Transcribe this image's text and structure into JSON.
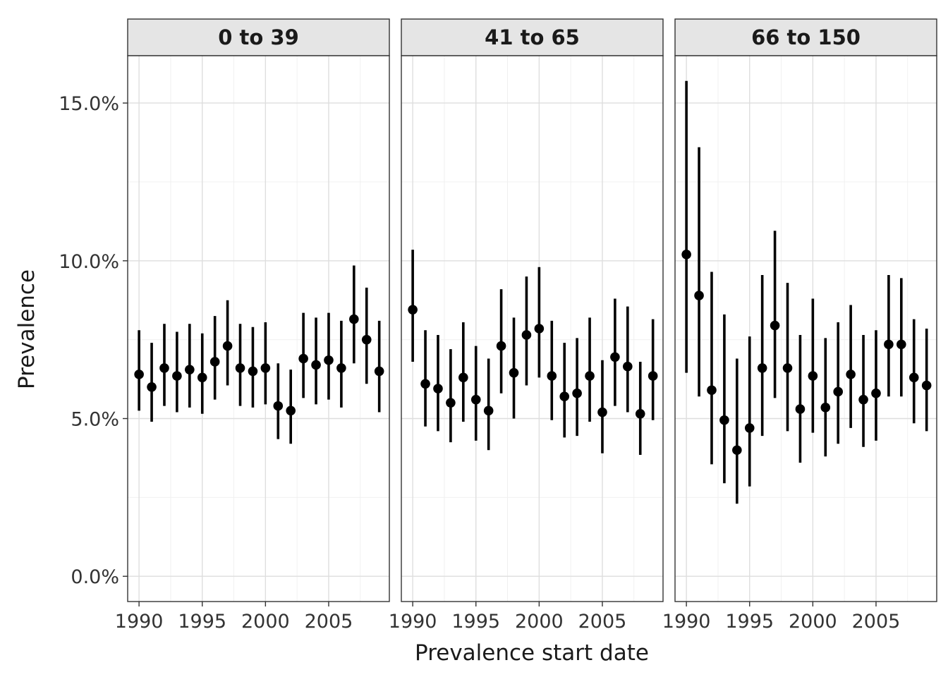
{
  "chart_data": {
    "type": "scatter",
    "subtype": "point-errorbar-facets",
    "xlabel": "Prevalence start date",
    "ylabel": "Prevalence",
    "ylim": [
      -0.8,
      16.5
    ],
    "xlim": [
      1989.1,
      2009.8
    ],
    "y_ticks": [
      {
        "value": 0,
        "label": "0.0%"
      },
      {
        "value": 5,
        "label": "5.0%"
      },
      {
        "value": 10,
        "label": "10.0%"
      },
      {
        "value": 15,
        "label": "15.0%"
      }
    ],
    "x_ticks": [
      {
        "value": 1990,
        "label": "1990"
      },
      {
        "value": 1995,
        "label": "1995"
      },
      {
        "value": 2000,
        "label": "2000"
      },
      {
        "value": 2005,
        "label": "2005"
      }
    ],
    "grid": true,
    "point_color": "#000000",
    "panels": [
      {
        "label": "0 to 39",
        "x": [
          1990,
          1991,
          1992,
          1993,
          1994,
          1995,
          1996,
          1997,
          1998,
          1999,
          2000,
          2001,
          2002,
          2003,
          2004,
          2005,
          2006,
          2007,
          2008,
          2009
        ],
        "y": [
          6.4,
          6.0,
          6.6,
          6.35,
          6.55,
          6.3,
          6.8,
          7.3,
          6.6,
          6.5,
          6.6,
          5.4,
          5.25,
          6.9,
          6.7,
          6.85,
          6.6,
          8.15,
          7.5,
          6.5
        ],
        "low": [
          5.25,
          4.9,
          5.4,
          5.2,
          5.35,
          5.15,
          5.6,
          6.05,
          5.4,
          5.35,
          5.45,
          4.35,
          4.2,
          5.65,
          5.45,
          5.6,
          5.35,
          6.75,
          6.1,
          5.2
        ],
        "high": [
          7.8,
          7.4,
          8.0,
          7.75,
          8.0,
          7.7,
          8.25,
          8.75,
          8.0,
          7.9,
          8.05,
          6.75,
          6.55,
          8.35,
          8.2,
          8.35,
          8.1,
          9.85,
          9.15,
          8.1
        ]
      },
      {
        "label": "41 to 65",
        "x": [
          1990,
          1991,
          1992,
          1993,
          1994,
          1995,
          1996,
          1997,
          1998,
          1999,
          2000,
          2001,
          2002,
          2003,
          2004,
          2005,
          2006,
          2007,
          2008,
          2009
        ],
        "y": [
          8.45,
          6.1,
          5.95,
          5.5,
          6.3,
          5.6,
          5.25,
          7.3,
          6.45,
          7.65,
          7.85,
          6.35,
          5.7,
          5.8,
          6.35,
          5.2,
          6.95,
          6.65,
          5.15,
          6.35
        ],
        "low": [
          6.8,
          4.75,
          4.6,
          4.25,
          4.9,
          4.3,
          4.0,
          5.8,
          5.0,
          6.05,
          6.3,
          4.95,
          4.4,
          4.45,
          4.9,
          3.9,
          5.4,
          5.2,
          3.85,
          4.95
        ],
        "high": [
          10.35,
          7.8,
          7.65,
          7.2,
          8.05,
          7.3,
          6.9,
          9.1,
          8.2,
          9.5,
          9.8,
          8.1,
          7.4,
          7.55,
          8.2,
          6.85,
          8.8,
          8.55,
          6.8,
          8.15
        ]
      },
      {
        "label": "66 to 150",
        "x": [
          1990,
          1991,
          1992,
          1993,
          1994,
          1995,
          1996,
          1997,
          1998,
          1999,
          2000,
          2001,
          2002,
          2003,
          2004,
          2005,
          2006,
          2007,
          2008,
          2009
        ],
        "y": [
          10.2,
          8.9,
          5.9,
          4.95,
          4.0,
          4.7,
          6.6,
          7.95,
          6.6,
          5.3,
          6.35,
          5.35,
          5.85,
          6.4,
          5.6,
          5.8,
          7.35,
          7.35,
          6.3,
          6.05
        ],
        "low": [
          6.45,
          5.7,
          3.55,
          2.95,
          2.3,
          2.85,
          4.45,
          5.65,
          4.6,
          3.6,
          4.55,
          3.8,
          4.2,
          4.7,
          4.1,
          4.3,
          5.7,
          5.7,
          4.85,
          4.6
        ],
        "high": [
          15.7,
          13.6,
          9.65,
          8.3,
          6.9,
          7.6,
          9.55,
          10.95,
          9.3,
          7.65,
          8.8,
          7.55,
          8.05,
          8.6,
          7.65,
          7.8,
          9.55,
          9.45,
          8.15,
          7.85
        ]
      }
    ]
  }
}
